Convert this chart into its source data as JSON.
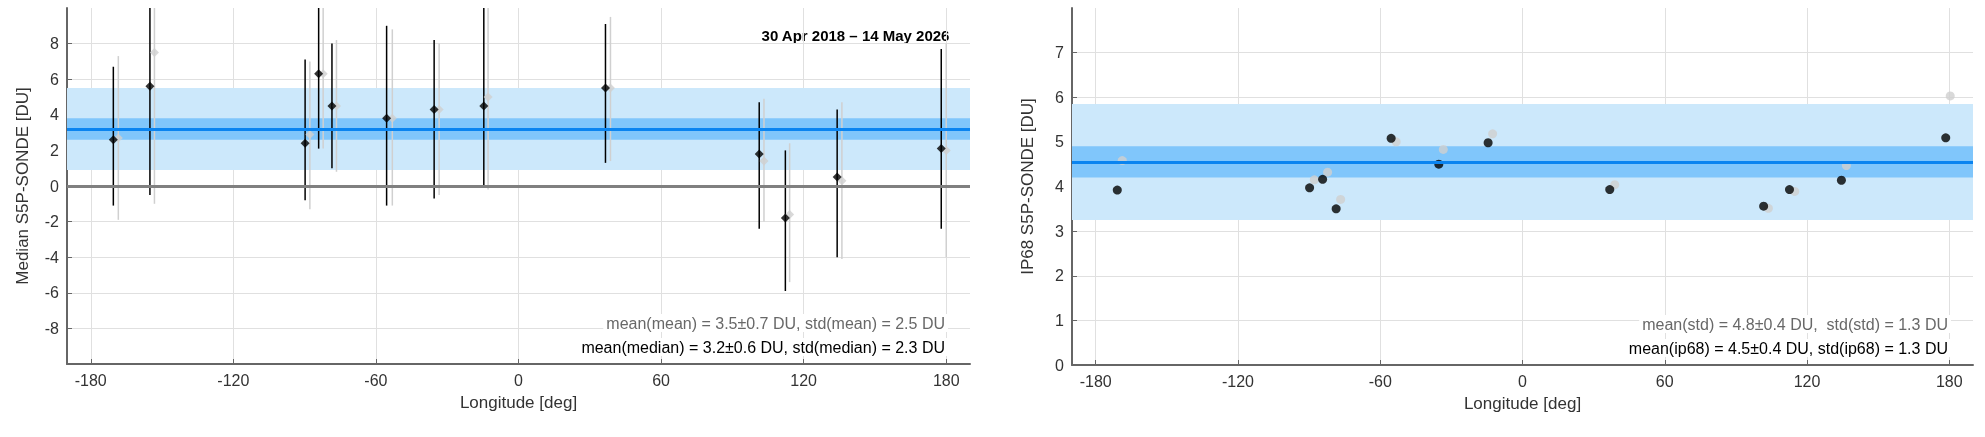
{
  "chart_data": [
    {
      "type": "scatter",
      "xlabel": "Longitude [deg]",
      "ylabel": "Median S5P-SONDE [DU]",
      "xlim": [
        -190,
        190
      ],
      "xticks": [
        -180,
        -120,
        -60,
        0,
        60,
        120,
        180
      ],
      "ylim": [
        -10,
        10
      ],
      "yticks": [
        -8,
        -6,
        -4,
        -2,
        0,
        2,
        4,
        6,
        8
      ],
      "grid": true,
      "marker": "diamond",
      "series": [
        {
          "color": "#d0d0d0",
          "x": [
            -168.4,
            -153.2,
            -87.8,
            -82.2,
            -76.6,
            -53.1,
            -33.4,
            -12.8,
            38.7,
            103.3,
            114.1,
            136.1,
            180
          ],
          "values": [
            2.7,
            7.5,
            2.9,
            6.3,
            4.5,
            3.8,
            4.3,
            5.0,
            5.5,
            1.4,
            -1.6,
            0.3,
            2.0
          ],
          "errors": [
            [
              -1.9,
              7.3
            ],
            [
              -1.0,
              10
            ],
            [
              -1.3,
              7.0
            ],
            [
              2.1,
              10
            ],
            [
              0.8,
              8.2
            ],
            [
              -1.1,
              8.8
            ],
            [
              -0.5,
              8.0
            ],
            [
              -0.2,
              10
            ],
            [
              1.4,
              9.5
            ],
            [
              -2.0,
              4.9
            ],
            [
              -5.4,
              2.4
            ],
            [
              -4.1,
              4.7
            ],
            [
              -4.0,
              8.0
            ]
          ]
        },
        {
          "color": "#000000",
          "x": [
            -170.5,
            -155.1,
            -89.8,
            -84.1,
            -78.5,
            -55.5,
            -35.5,
            -14.6,
            36.6,
            101.3,
            112.3,
            134.1,
            177.9
          ],
          "values": [
            2.6,
            5.6,
            2.4,
            6.3,
            4.5,
            3.8,
            4.3,
            4.5,
            5.5,
            1.8,
            -1.8,
            0.5,
            2.1
          ],
          "errors": [
            [
              -1.1,
              6.7
            ],
            [
              -0.5,
              10
            ],
            [
              -0.8,
              7.1
            ],
            [
              2.1,
              10
            ],
            [
              1.0,
              8.0
            ],
            [
              -1.1,
              9.0
            ],
            [
              -0.7,
              8.2
            ],
            [
              0.0,
              10
            ],
            [
              1.3,
              9.1
            ],
            [
              -2.4,
              4.7
            ],
            [
              -5.9,
              2.0
            ],
            [
              -4.0,
              4.3
            ],
            [
              -2.4,
              7.7
            ]
          ]
        }
      ],
      "bands": [
        {
          "axis": "y",
          "from": 0.9,
          "to": 5.5,
          "color": "#cce8fb"
        },
        {
          "axis": "y",
          "from": 2.6,
          "to": 3.8,
          "color": "#80c6fb"
        }
      ],
      "ref_lines": [
        {
          "axis": "y",
          "value": 3.2,
          "color": "#0a84f0"
        },
        {
          "axis": "y",
          "value": 0,
          "color": "#808080"
        }
      ],
      "annotations": [
        "30 Apr 2018 – 14 May 2026",
        "mean(mean) = 3.5±0.7 DU, std(mean) = 2.5 DU",
        "mean(median) = 3.2±0.6 DU, std(median) = 2.3 DU"
      ]
    },
    {
      "type": "scatter",
      "xlabel": "Longitude [deg]",
      "ylabel": "IP68 S5P-SONDE [DU]",
      "xlim": [
        -190,
        190
      ],
      "xticks": [
        -180,
        -120,
        -60,
        0,
        60,
        120,
        180
      ],
      "ylim": [
        0,
        8
      ],
      "yticks": [
        0,
        1,
        2,
        3,
        4,
        5,
        6,
        7
      ],
      "grid": true,
      "marker": "circle",
      "series": [
        {
          "color": "#d0d0d0",
          "x": [
            -168.8,
            -87.8,
            -82.2,
            -76.7,
            -53.3,
            -33.4,
            -12.6,
            38.9,
            103.7,
            114.8,
            136.6,
            180.4
          ],
          "values": [
            4.58,
            4.15,
            4.32,
            3.71,
            5.0,
            4.83,
            5.18,
            4.04,
            3.51,
            3.89,
            4.47,
            6.03
          ]
        },
        {
          "color": "#000000",
          "x": [
            -170.9,
            -89.8,
            -84.3,
            -78.6,
            -55.4,
            -35.3,
            -14.5,
            36.8,
            101.7,
            112.6,
            134.5,
            178.5
          ],
          "values": [
            3.92,
            3.97,
            4.16,
            3.5,
            5.08,
            4.5,
            4.98,
            3.93,
            3.56,
            3.93,
            4.14,
            5.09
          ]
        }
      ],
      "bands": [
        {
          "axis": "y",
          "from": 3.25,
          "to": 5.85,
          "color": "#cce8fb"
        },
        {
          "axis": "y",
          "from": 4.2,
          "to": 4.9,
          "color": "#80c6fb"
        }
      ],
      "ref_lines": [
        {
          "axis": "y",
          "value": 4.55,
          "color": "#0a84f0"
        }
      ],
      "annotations": [
        "mean(std) = 4.8±0.4 DU,  std(std) = 1.3 DU",
        "mean(ip68) = 4.5±0.4 DU, std(ip68) = 1.3 DU"
      ]
    }
  ]
}
